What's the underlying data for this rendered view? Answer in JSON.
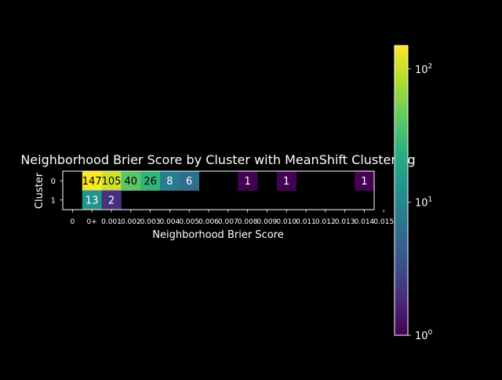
{
  "chart_data": {
    "type": "heatmap",
    "title": "Neighborhood Brier Score by Cluster with MeanShift Clustering",
    "xlabel": "Neighborhood Brier Score",
    "ylabel": "Cluster",
    "x_tick_labels": [
      "0",
      "0+",
      "0.001",
      "0.002",
      "0.003",
      "0.004",
      "0.005",
      "0.006",
      "0.007",
      "0.008",
      "0.009",
      "0.010",
      "0.011",
      "0.012",
      "0.013",
      "0.014",
      "0.015"
    ],
    "rows": [
      "0",
      "1"
    ],
    "values": [
      [
        null,
        147,
        105,
        40,
        26,
        8,
        6,
        null,
        null,
        1,
        null,
        1,
        null,
        null,
        null,
        1
      ],
      [
        null,
        13,
        2,
        null,
        null,
        null,
        null,
        null,
        null,
        null,
        null,
        null,
        null,
        null,
        null,
        null
      ]
    ],
    "colorbar": {
      "scale": "log",
      "min": 1,
      "max": 150,
      "ticks": [
        "10^0",
        "10^1",
        "10^2"
      ],
      "colormap": "viridis"
    },
    "colors": {
      "background": "#000000",
      "foreground": "#ffffff"
    }
  }
}
